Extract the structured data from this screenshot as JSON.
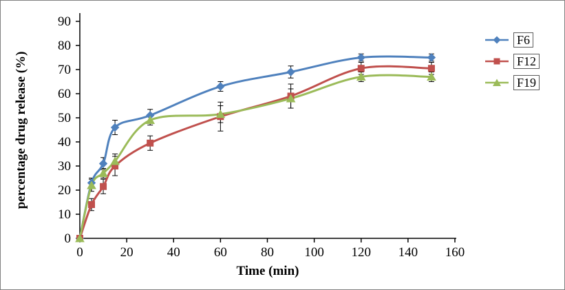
{
  "figure": {
    "border_color": "#7f7f7f",
    "background": "#ffffff"
  },
  "chart_data": {
    "type": "line",
    "title": "",
    "xlabel": "Time (min)",
    "ylabel": "percentage drug release (%)",
    "xlim": [
      0,
      160
    ],
    "ylim": [
      0,
      90
    ],
    "xticks": [
      0,
      20,
      40,
      60,
      80,
      100,
      120,
      140,
      160
    ],
    "yticks": [
      0,
      10,
      20,
      30,
      40,
      50,
      60,
      70,
      80,
      90
    ],
    "grid": false,
    "legend_position": "right",
    "error_bars": true,
    "x": [
      0,
      5,
      10,
      15,
      30,
      60,
      90,
      120,
      150
    ],
    "series": [
      {
        "name": "F6",
        "color": "#4F81BD",
        "marker": "diamond",
        "values": [
          0,
          23,
          31,
          46,
          51,
          63,
          69,
          75,
          75
        ],
        "errors": [
          0,
          2,
          2.5,
          3,
          2.5,
          2,
          2.5,
          1.5,
          1.5
        ]
      },
      {
        "name": "F12",
        "color": "#C0504D",
        "marker": "square",
        "values": [
          0,
          14,
          21.5,
          30,
          39.5,
          50.5,
          59,
          70.5,
          70.5
        ],
        "errors": [
          0,
          2.5,
          3,
          4,
          3,
          6,
          5,
          2.5,
          2.5
        ]
      },
      {
        "name": "F19",
        "color": "#9BBB59",
        "marker": "triangle",
        "values": [
          0,
          22,
          27,
          32,
          49,
          51.5,
          58,
          67,
          67
        ],
        "errors": [
          0,
          2.5,
          2,
          3,
          2,
          3.5,
          4,
          2,
          2
        ]
      }
    ]
  },
  "legend": {
    "entries": [
      "F6",
      "F12",
      "F19"
    ]
  }
}
